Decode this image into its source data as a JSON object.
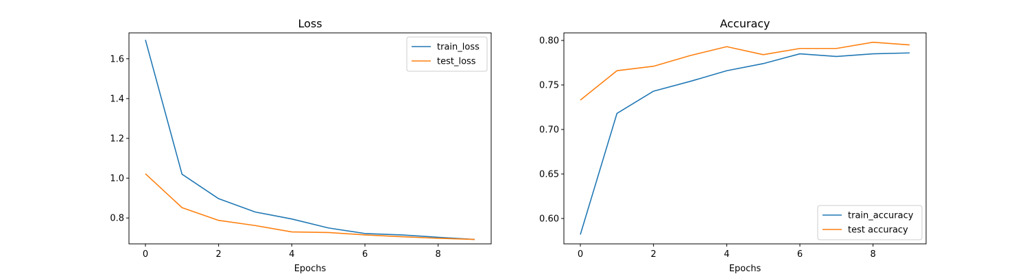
{
  "chart_data": [
    {
      "type": "line",
      "title": "Loss",
      "xlabel": "Epochs",
      "ylabel": "",
      "x": [
        0,
        1,
        2,
        3,
        4,
        5,
        6,
        7,
        8,
        9
      ],
      "xlim": [
        -0.45,
        9.45
      ],
      "ylim": [
        0.67,
        1.73
      ],
      "xticks": [
        0,
        2,
        4,
        6,
        8
      ],
      "yticks": [
        0.8,
        1.0,
        1.2,
        1.4,
        1.6
      ],
      "xtick_labels": [
        "0",
        "2",
        "4",
        "6",
        "8"
      ],
      "ytick_labels": [
        "0.8",
        "1.0",
        "1.2",
        "1.4",
        "1.6"
      ],
      "grid": false,
      "legend_position": "top-right",
      "series": [
        {
          "name": "train_loss",
          "color": "#1f77b4",
          "values": [
            1.695,
            1.02,
            0.897,
            0.83,
            0.795,
            0.75,
            0.722,
            0.715,
            0.703,
            0.692
          ]
        },
        {
          "name": "test_loss",
          "color": "#ff7f0e",
          "values": [
            1.022,
            0.852,
            0.788,
            0.762,
            0.73,
            0.727,
            0.715,
            0.706,
            0.698,
            0.692
          ]
        }
      ]
    },
    {
      "type": "line",
      "title": "Accuracy",
      "xlabel": "Epochs",
      "ylabel": "",
      "x": [
        0,
        1,
        2,
        3,
        4,
        5,
        6,
        7,
        8,
        9
      ],
      "xlim": [
        -0.45,
        9.45
      ],
      "ylim": [
        0.5715,
        0.8085
      ],
      "xticks": [
        0,
        2,
        4,
        6,
        8
      ],
      "yticks": [
        0.6,
        0.65,
        0.7,
        0.75,
        0.8
      ],
      "xtick_labels": [
        "0",
        "2",
        "4",
        "6",
        "8"
      ],
      "ytick_labels": [
        "0.60",
        "0.65",
        "0.70",
        "0.75",
        "0.80"
      ],
      "grid": false,
      "legend_position": "bottom-right",
      "series": [
        {
          "name": "train_accuracy",
          "color": "#1f77b4",
          "values": [
            0.582,
            0.718,
            0.743,
            0.754,
            0.766,
            0.774,
            0.785,
            0.782,
            0.785,
            0.786
          ]
        },
        {
          "name": "test accuracy",
          "color": "#ff7f0e",
          "values": [
            0.733,
            0.766,
            0.771,
            0.783,
            0.793,
            0.784,
            0.791,
            0.791,
            0.798,
            0.795
          ]
        }
      ]
    }
  ]
}
